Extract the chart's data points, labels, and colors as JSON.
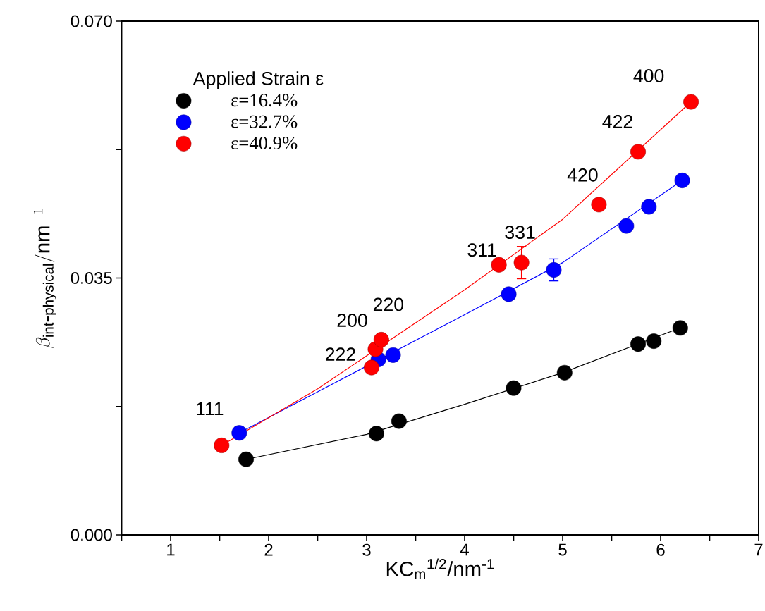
{
  "chart_data": {
    "type": "scatter",
    "xlabel": "KC$_{m}$$^{1/2}$/nm$^{-1}$",
    "ylabel": "\\beta_{\\mathrm{int\\mbox{-}physical}}/\\mathrm{nm}^{-1}",
    "legend_title": "Applied Strain  ε",
    "legend": "top left",
    "xlim": [
      0.5,
      7
    ],
    "xticks": [
      {
        "value": 0.5,
        "label": null
      },
      1,
      {
        "value": 1.5,
        "label": null
      },
      2,
      {
        "value": 2.5,
        "label": null
      },
      3,
      {
        "value": 3.5,
        "label": null
      },
      4,
      {
        "value": 4.5,
        "label": null
      },
      5,
      {
        "value": 5.5,
        "label": null
      },
      6,
      {
        "value": 6.5,
        "label": null
      },
      7
    ],
    "ylim": [
      0,
      0.07
    ],
    "yticks": [
      {
        "value": 0,
        "label": "0.000"
      },
      {
        "value": 0.0175,
        "label": null
      },
      {
        "value": 0.035,
        "label": "0.035"
      },
      {
        "value": 0.0525,
        "label": null
      },
      {
        "value": 0.07,
        "label": "0.070"
      }
    ],
    "series": [
      {
        "name": "ε=16.4%",
        "color": "#000000",
        "marker": "circle",
        "x": [
          1.77,
          3.1,
          3.33,
          4.5,
          5.02,
          5.77,
          5.93,
          6.2
        ],
        "values": [
          0.0103,
          0.0138,
          0.0155,
          0.02,
          0.0221,
          0.026,
          0.0264,
          0.0282
        ]
      },
      {
        "name": "ε=32.7%",
        "color": "#0000ff",
        "marker": "circle",
        "x": [
          1.7,
          3.12,
          3.27,
          4.45,
          4.91,
          5.65,
          5.88,
          6.22
        ],
        "values": [
          0.0139,
          0.0239,
          0.0245,
          0.0328,
          0.0361,
          0.0421,
          0.0447,
          0.0483
        ],
        "errors": [
          null,
          null,
          null,
          null,
          0.0015,
          null,
          null,
          null
        ]
      },
      {
        "name": "ε=40.9%",
        "color": "#ff0000",
        "marker": "circle",
        "x": [
          1.52,
          3.05,
          3.09,
          3.15,
          4.35,
          4.58,
          5.37,
          5.77,
          6.31
        ],
        "values": [
          0.0122,
          0.0228,
          0.0253,
          0.0266,
          0.0368,
          0.0371,
          0.045,
          0.0522,
          0.059
        ],
        "errors": [
          null,
          null,
          null,
          null,
          null,
          0.0022,
          null,
          null,
          null
        ]
      },
      {
        "type": "line",
        "color": "#000000",
        "marker": "none",
        "x": [
          1.77,
          3.0,
          4.0,
          5.0,
          6.2
        ],
        "values": [
          0.0103,
          0.0137,
          0.0178,
          0.0221,
          0.0282
        ]
      },
      {
        "type": "line",
        "color": "#0000ff",
        "marker": "none",
        "x": [
          1.7,
          2.5,
          4.0,
          5.0,
          6.22
        ],
        "values": [
          0.0139,
          0.0195,
          0.03,
          0.0371,
          0.0483
        ]
      },
      {
        "type": "line",
        "color": "#ff0000",
        "marker": "none",
        "x": [
          1.52,
          2.5,
          4.0,
          5.0,
          6.31
        ],
        "values": [
          0.0122,
          0.0199,
          0.0334,
          0.043,
          0.059
        ]
      }
    ],
    "annotations": [
      {
        "text": "111",
        "x": 1.52,
        "y": 0.0122
      },
      {
        "text": "222",
        "x": 3.05,
        "y": 0.0228
      },
      {
        "text": "200",
        "x": 3.09,
        "y": 0.0253
      },
      {
        "text": "220",
        "x": 3.15,
        "y": 0.0266
      },
      {
        "text": "311",
        "x": 4.35,
        "y": 0.0368
      },
      {
        "text": "331",
        "x": 4.58,
        "y": 0.0371
      },
      {
        "text": "420",
        "x": 5.37,
        "y": 0.045
      },
      {
        "text": "422",
        "x": 5.77,
        "y": 0.0522
      },
      {
        "text": "400",
        "x": 6.31,
        "y": 0.059
      }
    ]
  }
}
